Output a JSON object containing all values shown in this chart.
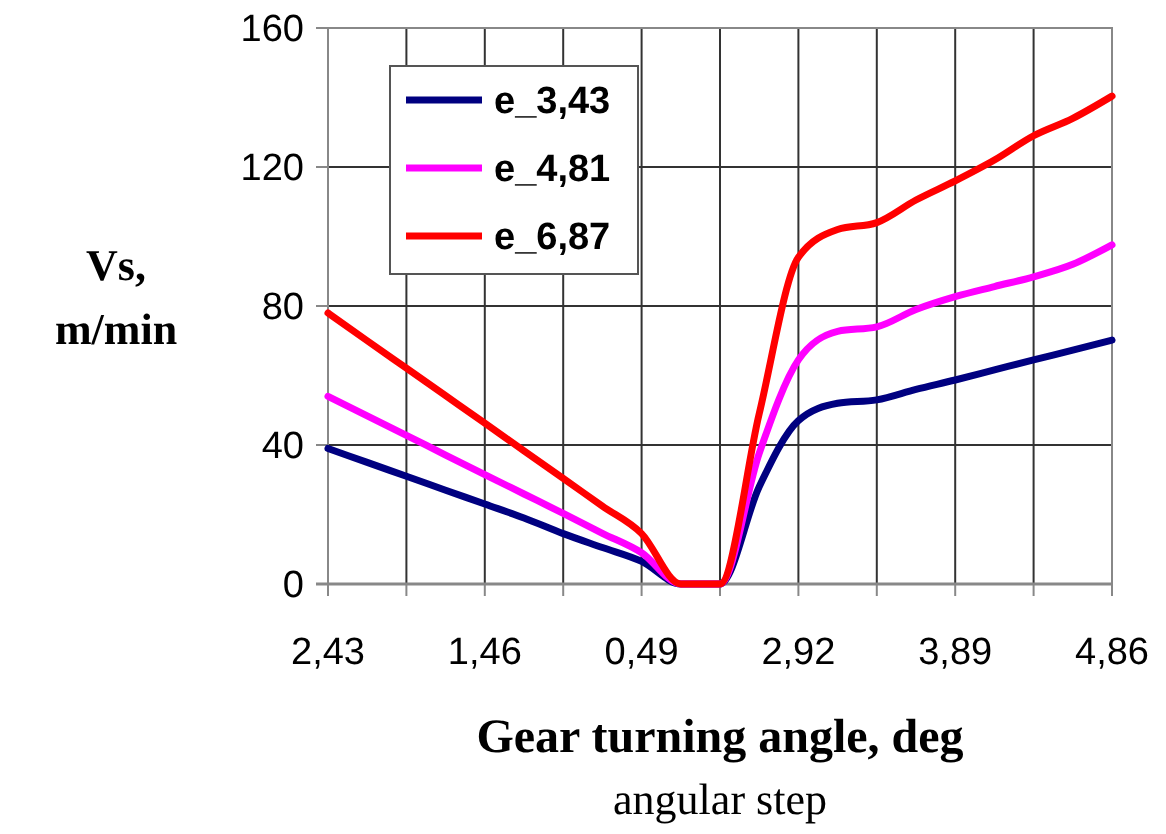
{
  "chart_data": {
    "type": "line",
    "xlabel": "Gear turning angle, deg",
    "ylabel": "Vs, m/min",
    "annotations": [
      "angular step"
    ],
    "categories": [
      "2,43",
      null,
      null,
      null,
      "1,46",
      null,
      null,
      null,
      "0,49",
      null,
      null,
      null,
      "2,92",
      null,
      null,
      null,
      "3,89",
      null,
      null,
      null,
      "4,86"
    ],
    "series": [
      {
        "name": "e_3,43",
        "color": "#000080",
        "values": [
          39,
          35,
          31,
          27,
          23,
          19,
          14.5,
          10.5,
          6.5,
          0,
          0,
          28,
          47,
          52,
          53,
          56,
          58.7,
          61.6,
          64.5,
          67.3,
          70.2
        ]
      },
      {
        "name": "e_4,81",
        "color": "#ff00ff",
        "values": [
          54,
          48.4,
          42.8,
          37.1,
          31.5,
          25.9,
          20.3,
          14.6,
          9,
          0,
          0,
          37.6,
          64.5,
          72.7,
          74,
          79,
          82.7,
          85.6,
          88.4,
          92,
          97.6
        ]
      },
      {
        "name": "e_6,87",
        "color": "#ff0000",
        "values": [
          78,
          70,
          62.1,
          54.2,
          46.3,
          38.3,
          30.4,
          22.4,
          14.5,
          0,
          0,
          49,
          94,
          102,
          104,
          110.5,
          116,
          122,
          129,
          134,
          140.4
        ]
      }
    ],
    "ylim": [
      0,
      160
    ],
    "yticks": [
      0,
      40,
      80,
      120,
      160
    ],
    "grid": true,
    "legend": "top left",
    "line_style": "solid",
    "marker": "none"
  }
}
